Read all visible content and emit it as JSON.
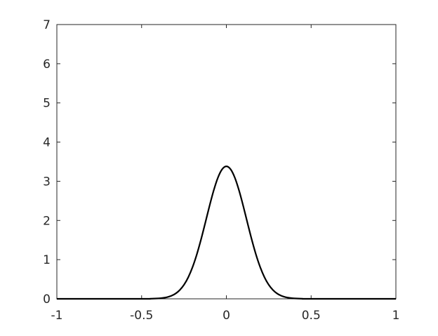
{
  "chart_data": {
    "type": "line",
    "title": "",
    "xlabel": "",
    "ylabel": "",
    "xlim": [
      -1,
      1
    ],
    "ylim": [
      0,
      7
    ],
    "grid": false,
    "x_ticks": [
      "-1",
      "-0.5",
      "0",
      "0.5",
      "1"
    ],
    "y_ticks": [
      "0",
      "1",
      "2",
      "3",
      "4",
      "5",
      "6",
      "7"
    ],
    "line_color": "#000000",
    "series": [
      {
        "x": [
          -1,
          -0.5,
          -0.45,
          -0.4,
          -0.375,
          -0.35,
          -0.325,
          -0.3,
          -0.275,
          -0.25,
          -0.225,
          -0.2,
          -0.175,
          -0.15,
          -0.125,
          -0.1,
          -0.075,
          -0.05,
          -0.025,
          0,
          0.025,
          0.05,
          0.075,
          0.1,
          0.125,
          0.15,
          0.175,
          0.2,
          0.225,
          0.25,
          0.275,
          0.3,
          0.325,
          0.35,
          0.375,
          0.4,
          0.45,
          0.5,
          1
        ],
        "y": [
          0,
          0,
          0.002,
          0.011,
          0.022,
          0.042,
          0.076,
          0.133,
          0.224,
          0.358,
          0.549,
          0.804,
          1.125,
          1.507,
          1.929,
          2.361,
          2.762,
          3.091,
          3.306,
          3.381,
          3.306,
          3.091,
          2.762,
          2.361,
          1.929,
          1.507,
          1.125,
          0.804,
          0.549,
          0.358,
          0.224,
          0.133,
          0.076,
          0.042,
          0.022,
          0.011,
          0.002,
          0,
          0
        ]
      }
    ]
  }
}
